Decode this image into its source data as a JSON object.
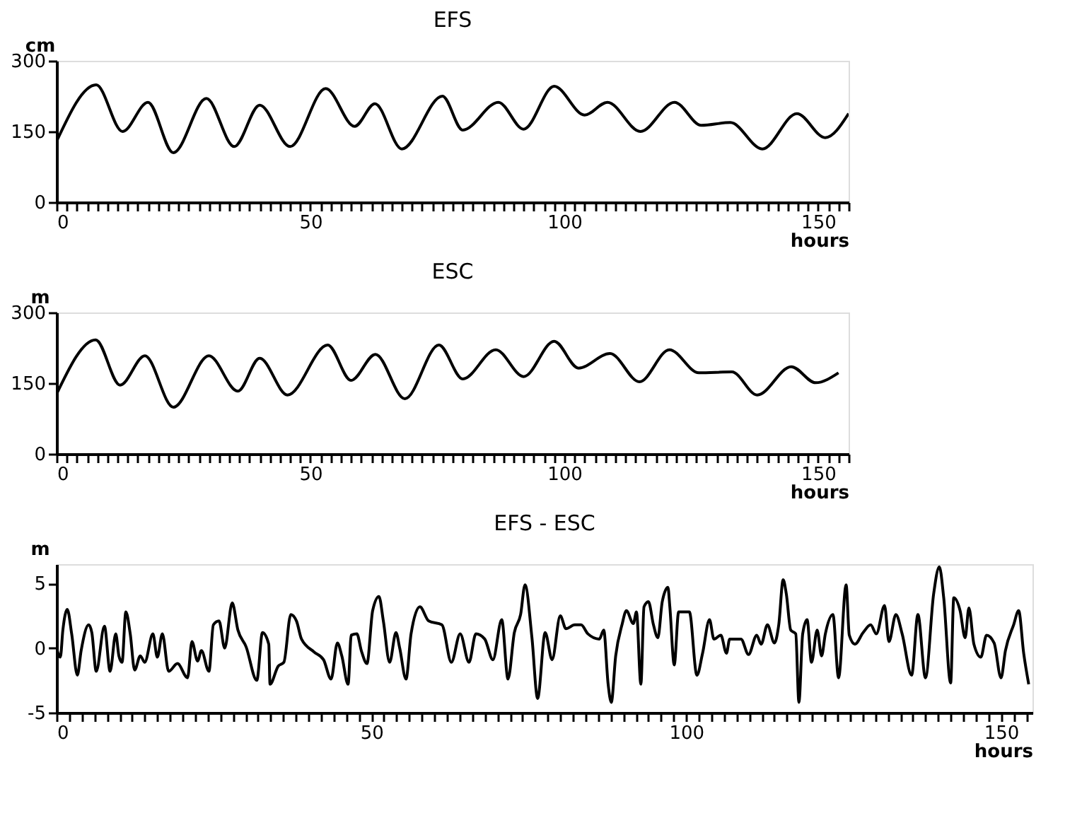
{
  "chart_data": [
    {
      "type": "line",
      "title": "EFS",
      "ylabel": "cm",
      "xlabel": "hours",
      "color": "#000000",
      "line_style": "solid",
      "x": [
        0,
        7.8,
        13,
        18,
        23,
        29.5,
        35,
        40,
        46,
        53,
        58.7,
        62.7,
        68,
        76,
        80,
        87,
        92,
        98,
        104,
        108.5,
        115,
        121.7,
        127,
        132.7,
        139,
        145.8,
        151.4,
        156
      ],
      "values": [
        129,
        249,
        150,
        212,
        105,
        220,
        118,
        206,
        118,
        241,
        161,
        209,
        113,
        225,
        153,
        212,
        155,
        246,
        185,
        212,
        150,
        212,
        163,
        169,
        113,
        188,
        137,
        188
      ],
      "xlim": [
        0,
        156
      ],
      "ylim": [
        0,
        300
      ],
      "yticks": [
        0,
        150,
        300
      ],
      "xticks": [
        0,
        {
          "value": 2,
          "label": null
        },
        {
          "value": 4,
          "label": null
        },
        {
          "value": 6,
          "label": null
        },
        {
          "value": 8,
          "label": null
        },
        {
          "value": 10,
          "label": null
        },
        {
          "value": 12,
          "label": null
        },
        {
          "value": 14,
          "label": null
        },
        {
          "value": 16,
          "label": null
        },
        {
          "value": 18,
          "label": null
        },
        {
          "value": 20,
          "label": null
        },
        {
          "value": 22,
          "label": null
        },
        {
          "value": 24,
          "label": null
        },
        {
          "value": 26,
          "label": null
        },
        {
          "value": 28,
          "label": null
        },
        {
          "value": 30,
          "label": null
        },
        {
          "value": 32,
          "label": null
        },
        {
          "value": 34,
          "label": null
        },
        {
          "value": 36,
          "label": null
        },
        {
          "value": 38,
          "label": null
        },
        {
          "value": 40,
          "label": null
        },
        {
          "value": 42,
          "label": null
        },
        {
          "value": 44,
          "label": null
        },
        {
          "value": 46,
          "label": null
        },
        {
          "value": 48,
          "label": null
        },
        50,
        {
          "value": 52,
          "label": null
        },
        {
          "value": 54,
          "label": null
        },
        {
          "value": 56,
          "label": null
        },
        {
          "value": 58,
          "label": null
        },
        {
          "value": 60,
          "label": null
        },
        {
          "value": 62,
          "label": null
        },
        {
          "value": 64,
          "label": null
        },
        {
          "value": 66,
          "label": null
        },
        {
          "value": 68,
          "label": null
        },
        {
          "value": 70,
          "label": null
        },
        {
          "value": 72,
          "label": null
        },
        {
          "value": 74,
          "label": null
        },
        {
          "value": 76,
          "label": null
        },
        {
          "value": 78,
          "label": null
        },
        {
          "value": 80,
          "label": null
        },
        {
          "value": 82,
          "label": null
        },
        {
          "value": 84,
          "label": null
        },
        {
          "value": 86,
          "label": null
        },
        {
          "value": 88,
          "label": null
        },
        {
          "value": 90,
          "label": null
        },
        {
          "value": 92,
          "label": null
        },
        {
          "value": 94,
          "label": null
        },
        {
          "value": 96,
          "label": null
        },
        {
          "value": 98,
          "label": null
        },
        100,
        {
          "value": 102,
          "label": null
        },
        {
          "value": 104,
          "label": null
        },
        {
          "value": 106,
          "label": null
        },
        {
          "value": 108,
          "label": null
        },
        {
          "value": 110,
          "label": null
        },
        {
          "value": 112,
          "label": null
        },
        {
          "value": 114,
          "label": null
        },
        {
          "value": 116,
          "label": null
        },
        {
          "value": 118,
          "label": null
        },
        {
          "value": 120,
          "label": null
        },
        {
          "value": 122,
          "label": null
        },
        {
          "value": 124,
          "label": null
        },
        {
          "value": 126,
          "label": null
        },
        {
          "value": 128,
          "label": null
        },
        {
          "value": 130,
          "label": null
        },
        {
          "value": 132,
          "label": null
        },
        {
          "value": 134,
          "label": null
        },
        {
          "value": 136,
          "label": null
        },
        {
          "value": 138,
          "label": null
        },
        {
          "value": 140,
          "label": null
        },
        {
          "value": 142,
          "label": null
        },
        {
          "value": 144,
          "label": null
        },
        {
          "value": 146,
          "label": null
        },
        {
          "value": 148,
          "label": null
        },
        150,
        {
          "value": 152,
          "label": null
        },
        {
          "value": 154,
          "label": null
        },
        {
          "value": 156,
          "label": null
        }
      ]
    },
    {
      "type": "line",
      "title": "ESC",
      "ylabel": "m",
      "xlabel": "hours",
      "color": "#000000",
      "line_style": "solid",
      "x": [
        0,
        7.7,
        12.5,
        17.4,
        23,
        30,
        35.7,
        40,
        45.5,
        53.4,
        58,
        62.8,
        68.6,
        75.3,
        80,
        86.5,
        92,
        98,
        102.8,
        109,
        114.8,
        120.7,
        126.5,
        133,
        138,
        144.7,
        149.5,
        154
      ],
      "values": [
        127,
        242,
        146,
        208,
        99,
        208,
        133,
        203,
        125,
        231,
        156,
        211,
        117,
        231,
        159,
        221,
        164,
        239,
        182,
        213,
        153,
        221,
        172,
        174,
        125,
        185,
        151,
        172
      ],
      "xlim": [
        0,
        156
      ],
      "ylim": [
        0,
        300
      ],
      "yticks": [
        0,
        150,
        300
      ],
      "xticks": [
        0,
        {
          "value": 2,
          "label": null
        },
        {
          "value": 4,
          "label": null
        },
        {
          "value": 6,
          "label": null
        },
        {
          "value": 8,
          "label": null
        },
        {
          "value": 10,
          "label": null
        },
        {
          "value": 12,
          "label": null
        },
        {
          "value": 14,
          "label": null
        },
        {
          "value": 16,
          "label": null
        },
        {
          "value": 18,
          "label": null
        },
        {
          "value": 20,
          "label": null
        },
        {
          "value": 22,
          "label": null
        },
        {
          "value": 24,
          "label": null
        },
        {
          "value": 26,
          "label": null
        },
        {
          "value": 28,
          "label": null
        },
        {
          "value": 30,
          "label": null
        },
        {
          "value": 32,
          "label": null
        },
        {
          "value": 34,
          "label": null
        },
        {
          "value": 36,
          "label": null
        },
        {
          "value": 38,
          "label": null
        },
        {
          "value": 40,
          "label": null
        },
        {
          "value": 42,
          "label": null
        },
        {
          "value": 44,
          "label": null
        },
        {
          "value": 46,
          "label": null
        },
        {
          "value": 48,
          "label": null
        },
        50,
        {
          "value": 52,
          "label": null
        },
        {
          "value": 54,
          "label": null
        },
        {
          "value": 56,
          "label": null
        },
        {
          "value": 58,
          "label": null
        },
        {
          "value": 60,
          "label": null
        },
        {
          "value": 62,
          "label": null
        },
        {
          "value": 64,
          "label": null
        },
        {
          "value": 66,
          "label": null
        },
        {
          "value": 68,
          "label": null
        },
        {
          "value": 70,
          "label": null
        },
        {
          "value": 72,
          "label": null
        },
        {
          "value": 74,
          "label": null
        },
        {
          "value": 76,
          "label": null
        },
        {
          "value": 78,
          "label": null
        },
        {
          "value": 80,
          "label": null
        },
        {
          "value": 82,
          "label": null
        },
        {
          "value": 84,
          "label": null
        },
        {
          "value": 86,
          "label": null
        },
        {
          "value": 88,
          "label": null
        },
        {
          "value": 90,
          "label": null
        },
        {
          "value": 92,
          "label": null
        },
        {
          "value": 94,
          "label": null
        },
        {
          "value": 96,
          "label": null
        },
        {
          "value": 98,
          "label": null
        },
        100,
        {
          "value": 102,
          "label": null
        },
        {
          "value": 104,
          "label": null
        },
        {
          "value": 106,
          "label": null
        },
        {
          "value": 108,
          "label": null
        },
        {
          "value": 110,
          "label": null
        },
        {
          "value": 112,
          "label": null
        },
        {
          "value": 114,
          "label": null
        },
        {
          "value": 116,
          "label": null
        },
        {
          "value": 118,
          "label": null
        },
        {
          "value": 120,
          "label": null
        },
        {
          "value": 122,
          "label": null
        },
        {
          "value": 124,
          "label": null
        },
        {
          "value": 126,
          "label": null
        },
        {
          "value": 128,
          "label": null
        },
        {
          "value": 130,
          "label": null
        },
        {
          "value": 132,
          "label": null
        },
        {
          "value": 134,
          "label": null
        },
        {
          "value": 136,
          "label": null
        },
        {
          "value": 138,
          "label": null
        },
        {
          "value": 140,
          "label": null
        },
        {
          "value": 142,
          "label": null
        },
        {
          "value": 144,
          "label": null
        },
        {
          "value": 146,
          "label": null
        },
        {
          "value": 148,
          "label": null
        },
        150,
        {
          "value": 152,
          "label": null
        },
        {
          "value": 154,
          "label": null
        },
        {
          "value": 156,
          "label": null
        }
      ]
    },
    {
      "type": "line",
      "title": "EFS - ESC",
      "ylabel": "m",
      "xlabel": "hours",
      "color": "#000000",
      "line_style": "solid",
      "x": [
        0,
        0.6,
        1.0,
        1.7,
        2.4,
        3.3,
        3.9,
        5.1,
        5.6,
        6.3,
        7.6,
        8.5,
        9.4,
        9.9,
        10.4,
        11.0,
        11.7,
        12.4,
        13.3,
        14.0,
        15.3,
        16.0,
        16.8,
        17.8,
        19.2,
        20.8,
        21.5,
        22.4,
        23.0,
        24.2,
        24.9,
        25.8,
        26.7,
        27.9,
        28.8,
        30.1,
        31.8,
        32.7,
        33.7,
        33.9,
        35.2,
        36.1,
        37.2,
        38.1,
        38.9,
        40.9,
        42.4,
        43.6,
        44.6,
        45.3,
        46.3,
        46.8,
        47.7,
        48.4,
        49.3,
        50.2,
        51.2,
        51.9,
        52.9,
        53.9,
        54.5,
        55.5,
        56.3,
        57.7,
        59.1,
        61.2,
        62.7,
        64.1,
        65.5,
        66.6,
        68.0,
        69.3,
        70.7,
        71.7,
        72.7,
        73.7,
        74.4,
        75.5,
        76.4,
        77.6,
        78.7,
        80.0,
        80.9,
        82.3,
        83.3,
        84.4,
        86.2,
        86.9,
        87.6,
        88.1,
        88.8,
        89.8,
        90.5,
        91.6,
        92.1,
        92.8,
        93.3,
        94.0,
        94.8,
        95.5,
        96.2,
        97.1,
        97.4,
        98.1,
        98.8,
        100.5,
        101.7,
        102.6,
        103.7,
        104.4,
        105.5,
        106.4,
        106.9,
        108.7,
        109.9,
        111.2,
        111.9,
        112.9,
        114.0,
        114.7,
        115.4,
        115.9,
        116.6,
        117.4,
        117.9,
        118.5,
        119.2,
        119.9,
        120.8,
        121.5,
        122.1,
        123.3,
        124.2,
        125.4,
        125.9,
        126.8,
        128.1,
        129.3,
        130.2,
        131.5,
        132.2,
        133.3,
        134.3,
        135.8,
        136.8,
        138.0,
        139.3,
        140.2,
        140.9,
        142.0,
        142.5,
        143.5,
        144.3,
        144.9,
        145.7,
        146.8,
        147.7,
        148.9,
        150.0,
        150.7,
        152.0,
        152.8,
        153.6,
        154.4
      ],
      "values": [
        0,
        -0.7,
        1.4,
        3.0,
        1.1,
        -2.1,
        -0.2,
        1.8,
        1.2,
        -1.8,
        1.7,
        -1.8,
        1.1,
        -0.6,
        -1.1,
        2.8,
        1.1,
        -1.7,
        -0.6,
        -1.1,
        1.1,
        -0.7,
        1.1,
        -1.8,
        -1.2,
        -2.3,
        0.5,
        -1.0,
        -0.2,
        -1.8,
        1.8,
        2.1,
        0,
        3.5,
        1.4,
        0.1,
        -2.5,
        1.2,
        0.3,
        -2.8,
        -1.4,
        -1.1,
        2.6,
        2.1,
        0.7,
        -0.3,
        -0.9,
        -2.4,
        0.4,
        -0.6,
        -2.8,
        1.0,
        1.1,
        -0.2,
        -1.2,
        2.9,
        4.0,
        2.1,
        -1.1,
        1.2,
        0,
        -2.4,
        1.1,
        3.2,
        2.1,
        1.8,
        -1.1,
        1.1,
        -1.1,
        1.1,
        0.7,
        -0.9,
        2.2,
        -2.4,
        1.2,
        2.6,
        4.9,
        0.8,
        -3.9,
        1.2,
        -0.9,
        2.5,
        1.5,
        1.8,
        1.8,
        1.1,
        0.7,
        1.4,
        -2.8,
        -4.2,
        -0.6,
        1.8,
        2.9,
        1.9,
        2.8,
        -2.8,
        3.2,
        3.6,
        1.8,
        0.8,
        3.6,
        4.7,
        3.2,
        -1.3,
        2.8,
        2.8,
        -2.1,
        -0.4,
        2.2,
        0.7,
        1.0,
        -0.4,
        0.7,
        0.7,
        -0.5,
        1.0,
        0.3,
        1.8,
        0.4,
        1.8,
        5.3,
        4.2,
        1.4,
        1.1,
        -4.2,
        1.1,
        2.2,
        -1.1,
        1.4,
        -0.6,
        1.1,
        2.6,
        -2.3,
        4.9,
        1.0,
        0.3,
        1.2,
        1.8,
        1.1,
        3.3,
        0.5,
        2.6,
        1.1,
        -2.1,
        2.6,
        -2.3,
        4.2,
        6.3,
        3.9,
        -2.7,
        3.9,
        2.9,
        0.8,
        3.1,
        0.3,
        -0.7,
        1.0,
        0.4,
        -2.3,
        -0.2,
        1.8,
        2.9,
        -0.4,
        -2.8
      ],
      "xlim": [
        0,
        155
      ],
      "ylim": [
        -5,
        6.5
      ],
      "yticks": [
        -5,
        0,
        5
      ],
      "xticks": [
        0,
        {
          "value": 2,
          "label": null
        },
        {
          "value": 4,
          "label": null
        },
        {
          "value": 6,
          "label": null
        },
        {
          "value": 8,
          "label": null
        },
        {
          "value": 10,
          "label": null
        },
        {
          "value": 12,
          "label": null
        },
        {
          "value": 14,
          "label": null
        },
        {
          "value": 16,
          "label": null
        },
        {
          "value": 18,
          "label": null
        },
        {
          "value": 20,
          "label": null
        },
        {
          "value": 22,
          "label": null
        },
        {
          "value": 24,
          "label": null
        },
        {
          "value": 26,
          "label": null
        },
        {
          "value": 28,
          "label": null
        },
        {
          "value": 30,
          "label": null
        },
        {
          "value": 32,
          "label": null
        },
        {
          "value": 34,
          "label": null
        },
        {
          "value": 36,
          "label": null
        },
        {
          "value": 38,
          "label": null
        },
        {
          "value": 40,
          "label": null
        },
        {
          "value": 42,
          "label": null
        },
        {
          "value": 44,
          "label": null
        },
        {
          "value": 46,
          "label": null
        },
        {
          "value": 48,
          "label": null
        },
        50,
        {
          "value": 52,
          "label": null
        },
        {
          "value": 54,
          "label": null
        },
        {
          "value": 56,
          "label": null
        },
        {
          "value": 58,
          "label": null
        },
        {
          "value": 60,
          "label": null
        },
        {
          "value": 62,
          "label": null
        },
        {
          "value": 64,
          "label": null
        },
        {
          "value": 66,
          "label": null
        },
        {
          "value": 68,
          "label": null
        },
        {
          "value": 70,
          "label": null
        },
        {
          "value": 72,
          "label": null
        },
        {
          "value": 74,
          "label": null
        },
        {
          "value": 76,
          "label": null
        },
        {
          "value": 78,
          "label": null
        },
        {
          "value": 80,
          "label": null
        },
        {
          "value": 82,
          "label": null
        },
        {
          "value": 84,
          "label": null
        },
        {
          "value": 86,
          "label": null
        },
        {
          "value": 88,
          "label": null
        },
        {
          "value": 90,
          "label": null
        },
        {
          "value": 92,
          "label": null
        },
        {
          "value": 94,
          "label": null
        },
        {
          "value": 96,
          "label": null
        },
        {
          "value": 98,
          "label": null
        },
        100,
        {
          "value": 102,
          "label": null
        },
        {
          "value": 104,
          "label": null
        },
        {
          "value": 106,
          "label": null
        },
        {
          "value": 108,
          "label": null
        },
        {
          "value": 110,
          "label": null
        },
        {
          "value": 112,
          "label": null
        },
        {
          "value": 114,
          "label": null
        },
        {
          "value": 116,
          "label": null
        },
        {
          "value": 118,
          "label": null
        },
        {
          "value": 120,
          "label": null
        },
        {
          "value": 122,
          "label": null
        },
        {
          "value": 124,
          "label": null
        },
        {
          "value": 126,
          "label": null
        },
        {
          "value": 128,
          "label": null
        },
        {
          "value": 130,
          "label": null
        },
        {
          "value": 132,
          "label": null
        },
        {
          "value": 134,
          "label": null
        },
        {
          "value": 136,
          "label": null
        },
        {
          "value": 138,
          "label": null
        },
        {
          "value": 140,
          "label": null
        },
        {
          "value": 142,
          "label": null
        },
        {
          "value": 144,
          "label": null
        },
        {
          "value": 146,
          "label": null
        },
        {
          "value": 148,
          "label": null
        },
        150,
        {
          "value": 152,
          "label": null
        },
        {
          "value": 154,
          "label": null
        }
      ]
    }
  ]
}
